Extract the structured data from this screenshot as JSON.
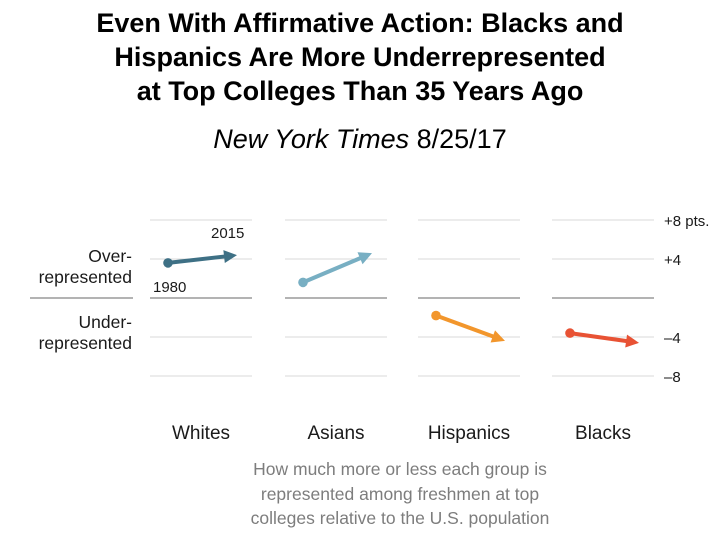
{
  "title_lines": [
    "Even With Affirmative Action: Blacks and",
    "Hispanics Are More Underrepresented",
    "at Top Colleges Than 35 Years Ago"
  ],
  "source": {
    "publication": "New York Times",
    "date": "8/25/17"
  },
  "caption_lines": [
    "How much more or less each group is",
    "represented among freshmen at top",
    "colleges relative to the U.S. population"
  ],
  "colors": {
    "Whites": "#3e7085",
    "Asians": "#78afc3",
    "Hispanics": "#f2962c",
    "Blacks": "#e85234",
    "grid": "#d9d9d9",
    "zero_line": "#9a9a9a",
    "text": "#1a1a1a"
  },
  "chart_data": {
    "type": "line",
    "title": "How much more or less each group is represented among freshmen at top colleges relative to the U.S. population",
    "x": [
      1980,
      2015
    ],
    "x_labels": {
      "start": "1980",
      "end": "2015"
    },
    "ylim": [
      -10.5,
      10.5
    ],
    "y_ticks": [
      8,
      4,
      -4,
      -8
    ],
    "y_tick_labels": [
      "+8 pts.",
      "+4",
      "–4",
      "–8"
    ],
    "y_band_labels": {
      "over": [
        "Over-",
        "represented"
      ],
      "under": [
        "Under-",
        "represented"
      ]
    },
    "series": [
      {
        "name": "Whites",
        "values": [
          3.6,
          4.4
        ]
      },
      {
        "name": "Asians",
        "values": [
          1.6,
          4.6
        ]
      },
      {
        "name": "Hispanics",
        "values": [
          -1.8,
          -4.4
        ]
      },
      {
        "name": "Blacks",
        "values": [
          -3.6,
          -4.6
        ]
      }
    ]
  }
}
